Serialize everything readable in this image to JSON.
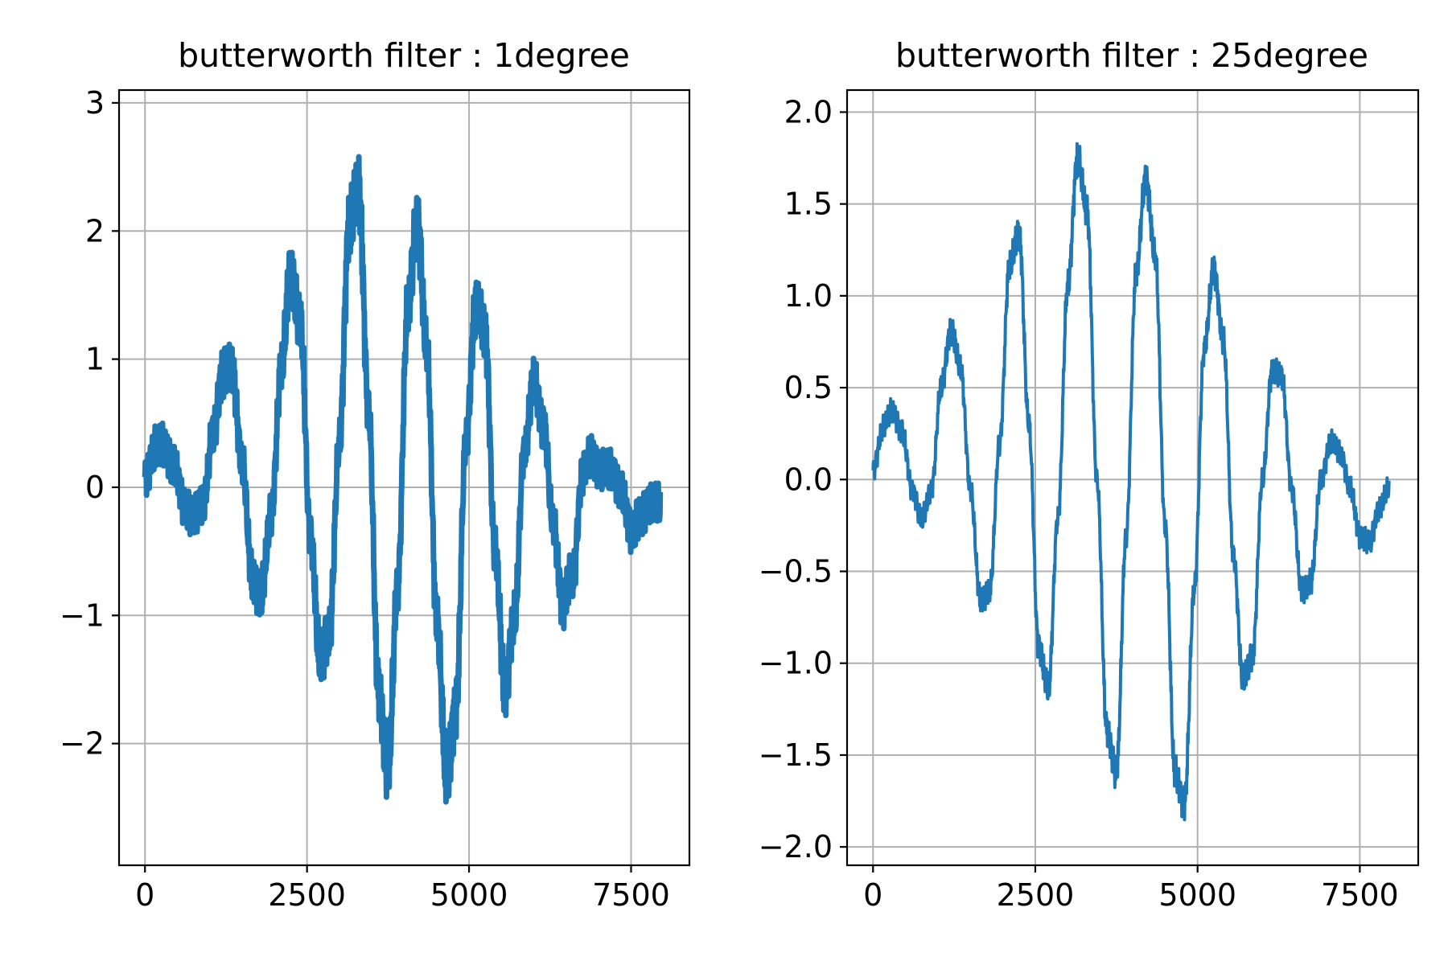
{
  "chart_data": [
    {
      "type": "line",
      "title": "butterworth filter : 1degree",
      "xlabel": "",
      "ylabel": "",
      "xlim": [
        -400,
        8400
      ],
      "ylim": [
        -2.95,
        3.1
      ],
      "xticks": [
        0,
        2500,
        5000,
        7500
      ],
      "xtick_labels": [
        "0",
        "2500",
        "5000",
        "7500"
      ],
      "yticks": [
        -2,
        -1,
        0,
        1,
        2,
        3
      ],
      "ytick_labels": [
        "−2",
        "−1",
        "0",
        "1",
        "2",
        "3"
      ],
      "grid": true,
      "color": "#1f77b4",
      "series": [
        {
          "x": [
            0,
            150,
            300,
            450,
            600,
            750,
            900,
            1050,
            1200,
            1350,
            1500,
            1650,
            1800,
            1950,
            2100,
            2250,
            2400,
            2550,
            2700,
            2850,
            3000,
            3150,
            3300,
            3450,
            3600,
            3750,
            3900,
            4050,
            4200,
            4350,
            4500,
            4650,
            4800,
            4950,
            5100,
            5250,
            5400,
            5550,
            5700,
            5850,
            6000,
            6150,
            6300,
            6450,
            6600,
            6750,
            6900,
            7050,
            7200,
            7350,
            7500,
            7650,
            7800,
            7950
          ],
          "y": [
            0.08,
            0.3,
            0.33,
            0.15,
            -0.12,
            -0.25,
            -0.1,
            0.4,
            0.92,
            0.88,
            0.2,
            -0.7,
            -0.82,
            -0.2,
            0.9,
            1.7,
            1.25,
            -0.35,
            -1.35,
            -1.1,
            0.35,
            2.05,
            2.3,
            0.6,
            -1.55,
            -2.2,
            -0.75,
            1.35,
            2.1,
            1.05,
            -1.0,
            -2.25,
            -1.7,
            0.35,
            1.4,
            1.2,
            -0.5,
            -1.55,
            -1.05,
            0.3,
            0.8,
            0.5,
            -0.3,
            -0.9,
            -0.7,
            0.1,
            0.25,
            0.12,
            0.15,
            -0.05,
            -0.32,
            -0.25,
            -0.1,
            -0.15
          ]
        }
      ]
    },
    {
      "type": "line",
      "title": "butterworth filter : 25degree",
      "xlabel": "",
      "ylabel": "",
      "xlim": [
        -400,
        8400
      ],
      "ylim": [
        -2.1,
        2.12
      ],
      "xticks": [
        0,
        2500,
        5000,
        7500
      ],
      "xtick_labels": [
        "0",
        "2500",
        "5000",
        "7500"
      ],
      "yticks": [
        -2.0,
        -1.5,
        -1.0,
        -0.5,
        0.0,
        0.5,
        1.0,
        1.5,
        2.0
      ],
      "ytick_labels": [
        "−2.0",
        "−1.5",
        "−1.0",
        "−0.5",
        "0.0",
        "0.5",
        "1.0",
        "1.5",
        "2.0"
      ],
      "grid": true,
      "color": "#1f77b4",
      "series": [
        {
          "x": [
            0,
            150,
            300,
            450,
            600,
            750,
            900,
            1050,
            1200,
            1350,
            1500,
            1650,
            1800,
            1950,
            2100,
            2250,
            2400,
            2550,
            2700,
            2850,
            3000,
            3150,
            3300,
            3450,
            3600,
            3750,
            3900,
            4050,
            4200,
            4350,
            4500,
            4650,
            4800,
            4950,
            5100,
            5250,
            5400,
            5550,
            5700,
            5850,
            6000,
            6150,
            6300,
            6450,
            6600,
            6750,
            6900,
            7050,
            7200,
            7350,
            7500,
            7650,
            7800,
            7950
          ],
          "y": [
            0.05,
            0.28,
            0.38,
            0.25,
            -0.05,
            -0.22,
            -0.05,
            0.5,
            0.82,
            0.6,
            -0.05,
            -0.65,
            -0.6,
            0.2,
            1.15,
            1.35,
            0.3,
            -0.9,
            -1.15,
            -0.2,
            1.05,
            1.75,
            1.45,
            0.0,
            -1.35,
            -1.6,
            -0.3,
            1.1,
            1.65,
            1.2,
            -0.25,
            -1.6,
            -1.75,
            -0.6,
            0.7,
            1.15,
            0.75,
            -0.4,
            -1.1,
            -0.95,
            0.0,
            0.6,
            0.55,
            -0.05,
            -0.6,
            -0.55,
            0.0,
            0.2,
            0.15,
            -0.05,
            -0.3,
            -0.35,
            -0.15,
            -0.05
          ]
        }
      ]
    }
  ]
}
